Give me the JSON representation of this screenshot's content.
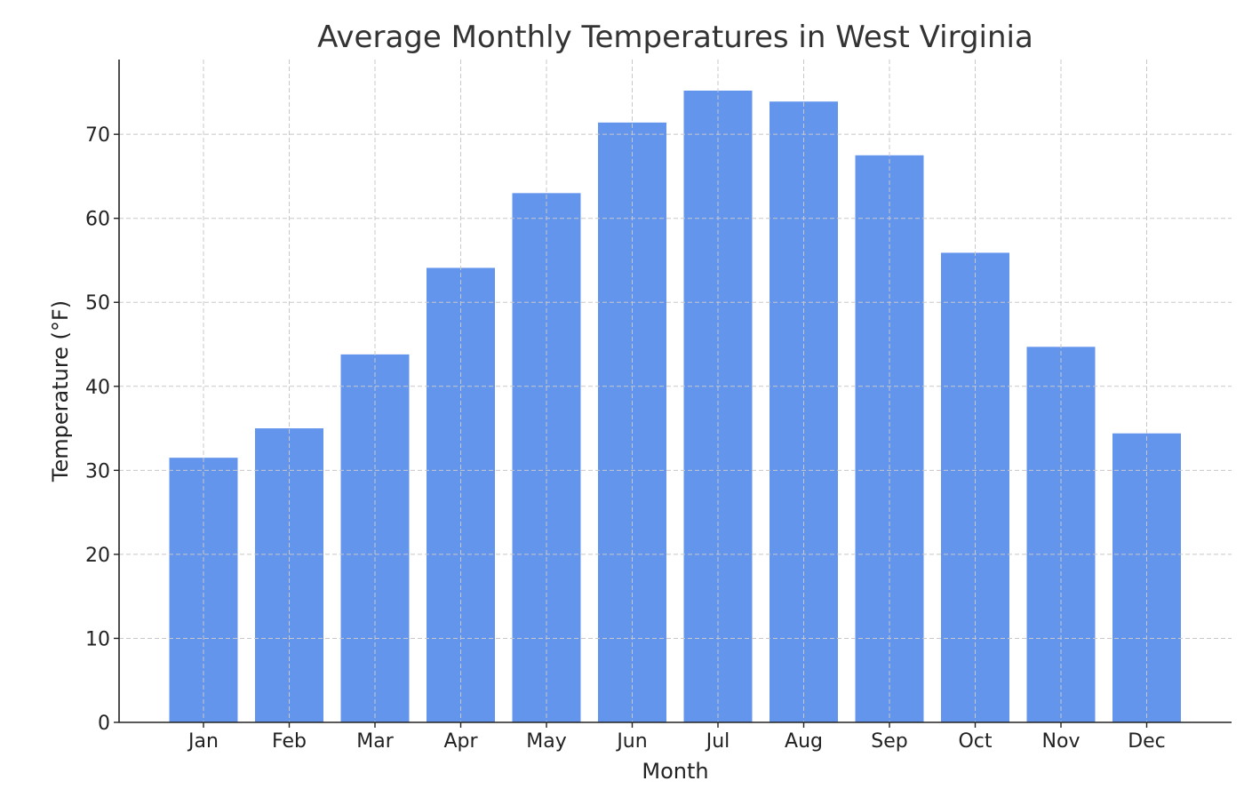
{
  "chart_data": {
    "type": "bar",
    "title": "Average Monthly Temperatures in West Virginia",
    "xlabel": "Month",
    "ylabel": "Temperature (°F)",
    "categories": [
      "Jan",
      "Feb",
      "Mar",
      "Apr",
      "May",
      "Jun",
      "Jul",
      "Aug",
      "Sep",
      "Oct",
      "Nov",
      "Dec"
    ],
    "values": [
      31.5,
      35.0,
      43.8,
      54.1,
      63.0,
      71.4,
      75.2,
      73.9,
      67.5,
      55.9,
      44.7,
      34.4
    ],
    "ylim": [
      0,
      78.9
    ],
    "yticks": [
      0,
      10,
      20,
      30,
      40,
      50,
      60,
      70
    ],
    "grid": true,
    "bar_color": "#6495ED"
  }
}
